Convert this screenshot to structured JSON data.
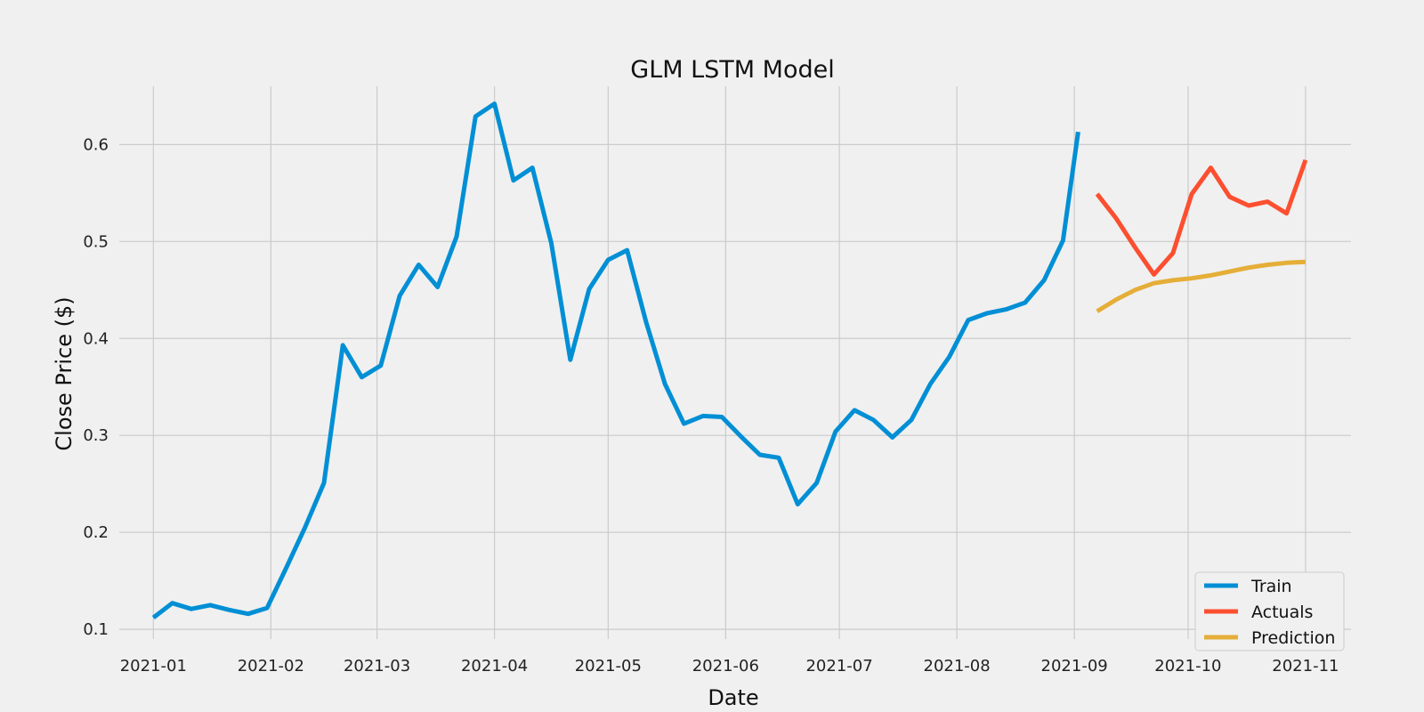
{
  "chart_data": {
    "type": "line",
    "title": "GLM LSTM Model",
    "xlabel": "Date",
    "ylabel": "Close Price ($)",
    "grid": true,
    "legend": "bottom-right",
    "xlim": [
      "2020-12-23",
      "2021-11-13"
    ],
    "ylim": [
      0.09,
      0.66
    ],
    "x_ticks": [
      {
        "date": "2021-01-01",
        "label": "2021-01"
      },
      {
        "date": "2021-02-01",
        "label": "2021-02"
      },
      {
        "date": "2021-03-01",
        "label": "2021-03"
      },
      {
        "date": "2021-04-01",
        "label": "2021-04"
      },
      {
        "date": "2021-05-01",
        "label": "2021-05"
      },
      {
        "date": "2021-06-01",
        "label": "2021-06"
      },
      {
        "date": "2021-07-01",
        "label": "2021-07"
      },
      {
        "date": "2021-08-01",
        "label": "2021-08"
      },
      {
        "date": "2021-09-01",
        "label": "2021-09"
      },
      {
        "date": "2021-10-01",
        "label": "2021-10"
      },
      {
        "date": "2021-11-01",
        "label": "2021-11"
      }
    ],
    "y_ticks": [
      {
        "value": 0.1,
        "label": "0.1"
      },
      {
        "value": 0.2,
        "label": "0.2"
      },
      {
        "value": 0.3,
        "label": "0.3"
      },
      {
        "value": 0.4,
        "label": "0.4"
      },
      {
        "value": 0.5,
        "label": "0.5"
      },
      {
        "value": 0.6,
        "label": "0.6"
      }
    ],
    "series": [
      {
        "name": "Train",
        "color": "#008fd5",
        "points": [
          [
            "2021-01-01",
            0.112
          ],
          [
            "2021-01-06",
            0.127
          ],
          [
            "2021-01-11",
            0.121
          ],
          [
            "2021-01-16",
            0.125
          ],
          [
            "2021-01-21",
            0.12
          ],
          [
            "2021-01-26",
            0.116
          ],
          [
            "2021-01-31",
            0.122
          ],
          [
            "2021-02-05",
            0.163
          ],
          [
            "2021-02-10",
            0.205
          ],
          [
            "2021-02-15",
            0.251
          ],
          [
            "2021-02-20",
            0.393
          ],
          [
            "2021-02-25",
            0.36
          ],
          [
            "2021-03-02",
            0.372
          ],
          [
            "2021-03-07",
            0.444
          ],
          [
            "2021-03-12",
            0.476
          ],
          [
            "2021-03-17",
            0.453
          ],
          [
            "2021-03-22",
            0.505
          ],
          [
            "2021-03-27",
            0.629
          ],
          [
            "2021-04-01",
            0.642
          ],
          [
            "2021-04-06",
            0.563
          ],
          [
            "2021-04-11",
            0.576
          ],
          [
            "2021-04-16",
            0.498
          ],
          [
            "2021-04-21",
            0.378
          ],
          [
            "2021-04-26",
            0.451
          ],
          [
            "2021-05-01",
            0.481
          ],
          [
            "2021-05-06",
            0.491
          ],
          [
            "2021-05-11",
            0.417
          ],
          [
            "2021-05-16",
            0.353
          ],
          [
            "2021-05-21",
            0.312
          ],
          [
            "2021-05-26",
            0.32
          ],
          [
            "2021-05-31",
            0.319
          ],
          [
            "2021-06-05",
            0.299
          ],
          [
            "2021-06-10",
            0.28
          ],
          [
            "2021-06-15",
            0.277
          ],
          [
            "2021-06-20",
            0.229
          ],
          [
            "2021-06-25",
            0.251
          ],
          [
            "2021-06-30",
            0.304
          ],
          [
            "2021-07-05",
            0.326
          ],
          [
            "2021-07-10",
            0.316
          ],
          [
            "2021-07-15",
            0.298
          ],
          [
            "2021-07-20",
            0.316
          ],
          [
            "2021-07-25",
            0.353
          ],
          [
            "2021-07-30",
            0.381
          ],
          [
            "2021-08-04",
            0.419
          ],
          [
            "2021-08-09",
            0.426
          ],
          [
            "2021-08-14",
            0.43
          ],
          [
            "2021-08-19",
            0.437
          ],
          [
            "2021-08-24",
            0.46
          ],
          [
            "2021-08-29",
            0.501
          ],
          [
            "2021-09-02",
            0.613
          ]
        ]
      },
      {
        "name": "Actuals",
        "color": "#fc4f30",
        "points": [
          [
            "2021-09-07",
            0.549
          ],
          [
            "2021-09-12",
            0.524
          ],
          [
            "2021-09-17",
            0.494
          ],
          [
            "2021-09-22",
            0.466
          ],
          [
            "2021-09-27",
            0.488
          ],
          [
            "2021-10-02",
            0.549
          ],
          [
            "2021-10-07",
            0.576
          ],
          [
            "2021-10-12",
            0.546
          ],
          [
            "2021-10-17",
            0.537
          ],
          [
            "2021-10-22",
            0.541
          ],
          [
            "2021-10-27",
            0.529
          ],
          [
            "2021-11-01",
            0.584
          ]
        ]
      },
      {
        "name": "Prediction",
        "color": "#e5ae38",
        "points": [
          [
            "2021-09-07",
            0.428
          ],
          [
            "2021-09-12",
            0.44
          ],
          [
            "2021-09-17",
            0.45
          ],
          [
            "2021-09-22",
            0.457
          ],
          [
            "2021-09-27",
            0.46
          ],
          [
            "2021-10-02",
            0.462
          ],
          [
            "2021-10-07",
            0.465
          ],
          [
            "2021-10-12",
            0.469
          ],
          [
            "2021-10-17",
            0.473
          ],
          [
            "2021-10-22",
            0.476
          ],
          [
            "2021-10-27",
            0.478
          ],
          [
            "2021-11-01",
            0.479
          ]
        ]
      }
    ]
  }
}
